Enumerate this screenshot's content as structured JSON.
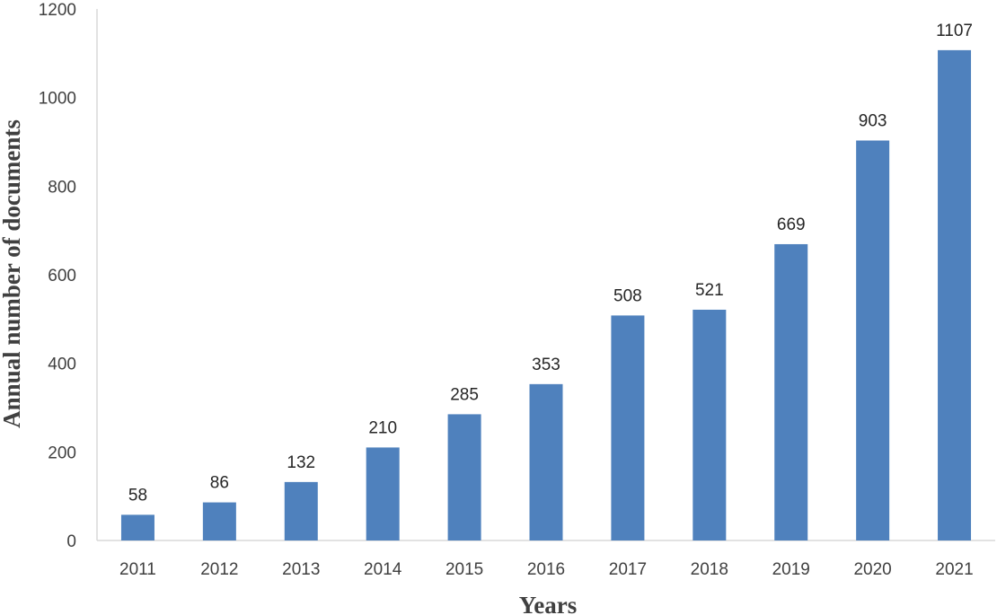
{
  "chart_data": {
    "type": "bar",
    "title": "",
    "xlabel": "Years",
    "ylabel": "Annual number of documents",
    "categories": [
      "2011",
      "2012",
      "2013",
      "2014",
      "2015",
      "2016",
      "2017",
      "2018",
      "2019",
      "2020",
      "2021"
    ],
    "values": [
      58,
      86,
      132,
      210,
      285,
      353,
      508,
      521,
      669,
      903,
      1107
    ],
    "data_labels": [
      "58",
      "86",
      "132",
      "210",
      "285",
      "353",
      "508",
      "521",
      "669",
      "903",
      "1107"
    ],
    "ylim": [
      0,
      1200
    ],
    "yticks": [
      0,
      200,
      400,
      600,
      800,
      1000,
      1200
    ],
    "ytick_labels": [
      "0",
      "200",
      "400",
      "600",
      "800",
      "1000",
      "1200"
    ],
    "bar_color": "#4F81BD",
    "axis_color": "#D9D9D9",
    "grid": false,
    "legend": "none"
  }
}
